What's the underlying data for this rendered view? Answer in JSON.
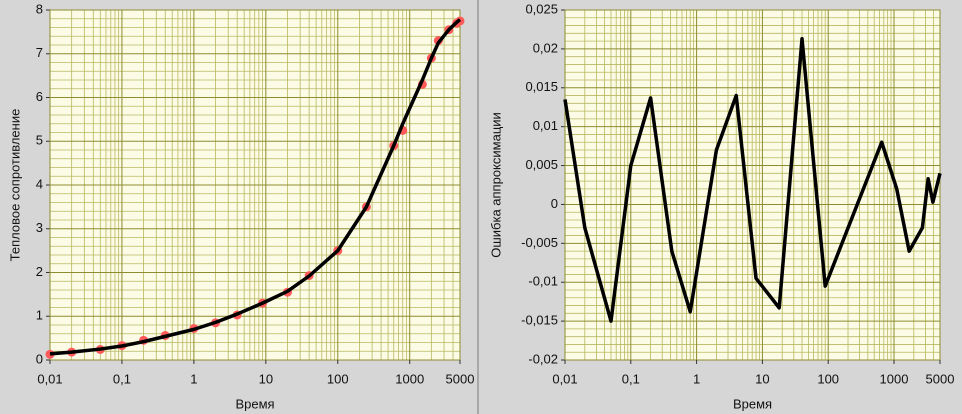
{
  "chart_data": [
    {
      "type": "line",
      "xscale": "log",
      "grid": true,
      "minor_grid": true,
      "xlabel": "Время",
      "ylabel": "Тепловое сопротивление",
      "x": [
        0.01,
        0.02,
        0.05,
        0.1,
        0.2,
        0.4,
        1,
        2,
        4,
        9,
        20,
        40,
        100,
        250,
        600,
        800,
        1500,
        2000,
        2500,
        3500,
        4500,
        5000
      ],
      "series": [
        {
          "color": "#ff5a5a",
          "style": "markers",
          "values": [
            0.13,
            0.18,
            0.24,
            0.33,
            0.45,
            0.56,
            0.72,
            0.85,
            1.03,
            1.3,
            1.55,
            1.93,
            2.5,
            3.5,
            4.9,
            5.25,
            6.3,
            6.9,
            7.3,
            7.55,
            7.7,
            7.75
          ]
        },
        {
          "color": "#000000",
          "style": "line",
          "values": [
            0.14,
            0.18,
            0.25,
            0.32,
            0.42,
            0.54,
            0.7,
            0.86,
            1.05,
            1.3,
            1.57,
            1.92,
            2.5,
            3.5,
            4.9,
            5.4,
            6.4,
            6.9,
            7.25,
            7.55,
            7.72,
            7.78
          ]
        }
      ],
      "xlim": [
        0.01,
        5000
      ],
      "xticks": [
        {
          "value": 0.01,
          "label": "0,01"
        },
        {
          "value": 0.1,
          "label": "0,1"
        },
        1,
        10,
        100,
        1000,
        5000
      ],
      "ylim": [
        0,
        8
      ],
      "yticks": [
        0,
        1,
        2,
        3,
        4,
        5,
        6,
        7,
        8
      ]
    },
    {
      "type": "line",
      "xscale": "log",
      "grid": true,
      "minor_grid": true,
      "xlabel": "Время",
      "ylabel": "Ошибка аппроксимации",
      "x": [
        0.01,
        0.02,
        0.05,
        0.1,
        0.2,
        0.42,
        0.8,
        2,
        4,
        8,
        18,
        40,
        90,
        650,
        1100,
        1700,
        2700,
        3300,
        3900,
        5000
      ],
      "series": [
        {
          "color": "#000000",
          "style": "line",
          "values": [
            0.0135,
            -0.003,
            -0.015,
            0.005,
            0.0137,
            -0.006,
            -0.0138,
            0.007,
            0.014,
            -0.0095,
            -0.0133,
            0.0213,
            -0.0105,
            0.008,
            0.002,
            -0.006,
            -0.003,
            0.0033,
            0.0003,
            0.004
          ]
        }
      ],
      "xlim": [
        0.01,
        5000
      ],
      "xticks": [
        {
          "value": 0.01,
          "label": "0,01"
        },
        {
          "value": 0.1,
          "label": "0,1"
        },
        1,
        10,
        100,
        1000,
        5000
      ],
      "ylim": [
        -0.02,
        0.025
      ],
      "yticks": [
        {
          "value": -0.02,
          "label": "-0,02"
        },
        {
          "value": -0.015,
          "label": "-0,015"
        },
        {
          "value": -0.01,
          "label": "-0,01"
        },
        {
          "value": -0.005,
          "label": "-0,005"
        },
        0,
        {
          "value": 0.005,
          "label": "0,005"
        },
        {
          "value": 0.01,
          "label": "0,01"
        },
        {
          "value": 0.015,
          "label": "0,015"
        },
        {
          "value": 0.02,
          "label": "0,02"
        },
        {
          "value": 0.025,
          "label": "0,025"
        }
      ]
    }
  ]
}
